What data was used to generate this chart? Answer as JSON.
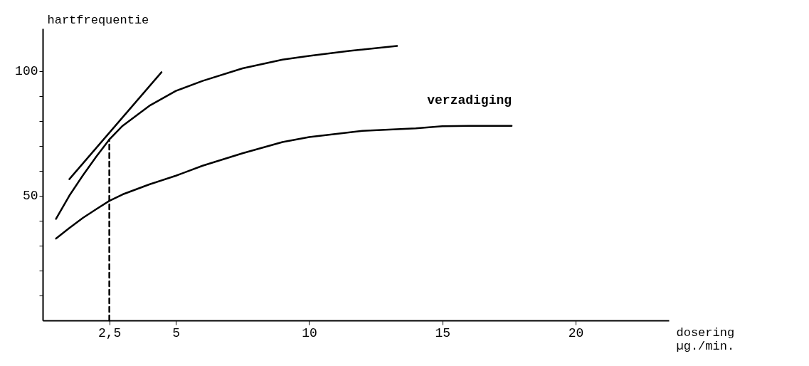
{
  "chart_data": {
    "type": "line",
    "xlabel": "dosering\nµg./min.",
    "ylabel": "hartfrequentie",
    "xlim": [
      0,
      23.5
    ],
    "ylim": [
      0,
      117
    ],
    "xticks": [
      {
        "value": 2.5,
        "label": "2,5"
      },
      5,
      10,
      15,
      20
    ],
    "yticks": [
      {
        "value": 10,
        "label": null
      },
      {
        "value": 20,
        "label": null
      },
      {
        "value": 30,
        "label": null
      },
      {
        "value": 40,
        "label": null
      },
      50,
      {
        "value": 60,
        "label": null
      },
      {
        "value": 70,
        "label": null
      },
      {
        "value": 80,
        "label": null
      },
      {
        "value": 90,
        "label": null
      },
      100
    ],
    "grid": false,
    "legend": false,
    "marker": "none",
    "series": [
      {
        "color": "#000000",
        "x": [
          0.5,
          1,
          1.5,
          2,
          2.5,
          3,
          4,
          5,
          6,
          7.5,
          9,
          10,
          11.5,
          13.3
        ],
        "values": [
          40.7,
          50,
          58,
          65.5,
          72.5,
          78,
          86,
          92,
          96,
          101,
          104.5,
          106,
          108,
          110
        ]
      },
      {
        "name": "verzadiging",
        "color": "#000000",
        "x": [
          0.5,
          1,
          1.5,
          2,
          2.5,
          3,
          4,
          5,
          6,
          7.5,
          9,
          10,
          12,
          14,
          15,
          16,
          17.6
        ],
        "values": [
          32.8,
          37,
          41,
          44.5,
          47.9,
          50.5,
          54.5,
          58,
          62,
          67,
          71.5,
          73.5,
          76,
          77,
          77.8,
          78,
          78
        ]
      },
      {
        "color": "#000000",
        "x": [
          1,
          4.46
        ],
        "values": [
          56.6,
          99.5
        ]
      },
      {
        "color": "#000000",
        "x": [
          2.5,
          2.5
        ],
        "values": [
          0,
          72.5
        ],
        "line_style": "dashed"
      }
    ]
  }
}
